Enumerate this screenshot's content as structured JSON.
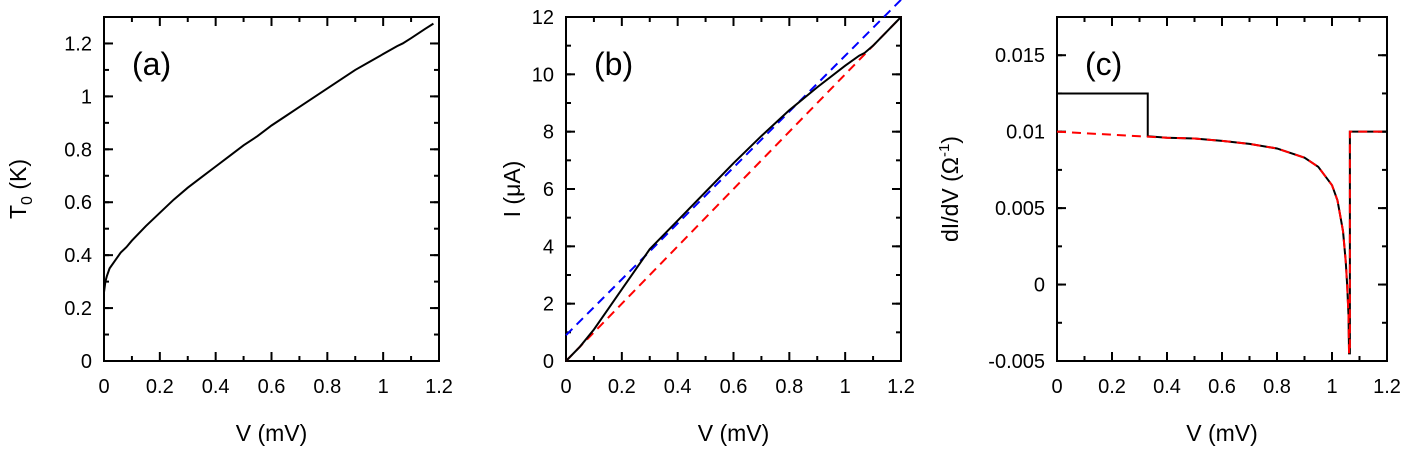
{
  "chart_data": [
    {
      "type": "line",
      "panel_label": "(a)",
      "xlabel": "V (mV)",
      "ylabel_main": "T",
      "ylabel_sub": "0",
      "ylabel_tail": " (K)",
      "xlim": [
        0,
        1.2
      ],
      "ylim": [
        0,
        1.3
      ],
      "xticks": [
        0,
        0.2,
        0.4,
        0.6,
        0.8,
        1,
        1.2
      ],
      "xtick_labels": [
        "0",
        "0.2",
        "0.4",
        "0.6",
        "0.8",
        "1",
        "1.2"
      ],
      "yticks": [
        0,
        0.2,
        0.4,
        0.6,
        0.8,
        1,
        1.2
      ],
      "ytick_labels": [
        "0",
        "0.2",
        "0.4",
        "0.6",
        "0.8",
        "1",
        "1.2"
      ],
      "series": [
        {
          "color": "#000000",
          "dash": "solid",
          "x": [
            0,
            0.005,
            0.01,
            0.02,
            0.04,
            0.06,
            0.08,
            0.1,
            0.15,
            0.2,
            0.25,
            0.3,
            0.35,
            0.4,
            0.45,
            0.5,
            0.55,
            0.6,
            0.65,
            0.7,
            0.75,
            0.8,
            0.85,
            0.9,
            0.95,
            1.0,
            1.05,
            1.07,
            1.1,
            1.15,
            1.18
          ],
          "y": [
            0.26,
            0.3,
            0.32,
            0.35,
            0.38,
            0.41,
            0.43,
            0.455,
            0.51,
            0.56,
            0.61,
            0.655,
            0.695,
            0.735,
            0.775,
            0.815,
            0.85,
            0.89,
            0.925,
            0.96,
            0.995,
            1.03,
            1.065,
            1.1,
            1.13,
            1.16,
            1.19,
            1.2,
            1.22,
            1.255,
            1.275
          ]
        }
      ]
    },
    {
      "type": "line",
      "panel_label": "(b)",
      "xlabel": "V (mV)",
      "ylabel_main": "I (μA)",
      "xlim": [
        0,
        1.2
      ],
      "ylim": [
        0,
        12
      ],
      "xticks": [
        0,
        0.2,
        0.4,
        0.6,
        0.8,
        1,
        1.2
      ],
      "xtick_labels": [
        "0",
        "0.2",
        "0.4",
        "0.6",
        "0.8",
        "1",
        "1.2"
      ],
      "yticks": [
        0,
        2,
        4,
        6,
        8,
        10,
        12
      ],
      "ytick_labels": [
        "0",
        "2",
        "4",
        "6",
        "8",
        "10",
        "12"
      ],
      "series": [
        {
          "color": "#0000ff",
          "dash": "dashed",
          "x": [
            0,
            1.2
          ],
          "y": [
            0.9,
            12.6
          ]
        },
        {
          "color": "#ff0000",
          "dash": "dashed",
          "x": [
            0,
            1.2
          ],
          "y": [
            0,
            12
          ]
        },
        {
          "color": "#000000",
          "dash": "solid",
          "x": [
            0,
            0.05,
            0.1,
            0.15,
            0.2,
            0.25,
            0.3,
            0.33,
            0.4,
            0.5,
            0.6,
            0.7,
            0.8,
            0.9,
            1.0,
            1.05,
            1.07,
            1.1,
            1.2
          ],
          "y": [
            0,
            0.5,
            1.1,
            1.8,
            2.5,
            3.2,
            3.9,
            4.2,
            4.9,
            5.9,
            6.9,
            7.85,
            8.75,
            9.55,
            10.3,
            10.65,
            10.75,
            11.0,
            12.0
          ]
        }
      ]
    },
    {
      "type": "line",
      "panel_label": "(c)",
      "xlabel": "V (mV)",
      "ylabel_main": "dI/dV (Ω",
      "ylabel_sup": "-1",
      "ylabel_tail": ")",
      "xlim": [
        0,
        1.2
      ],
      "ylim": [
        -0.005,
        0.0175
      ],
      "xticks": [
        0,
        0.2,
        0.4,
        0.6,
        0.8,
        1,
        1.2
      ],
      "xtick_labels": [
        "0",
        "0.2",
        "0.4",
        "0.6",
        "0.8",
        "1",
        "1.2"
      ],
      "yticks": [
        -0.005,
        0,
        0.005,
        0.01,
        0.015
      ],
      "ytick_labels": [
        "-0.005",
        "0",
        "0.005",
        "0.01",
        "0.015"
      ],
      "series": [
        {
          "color": "#000000",
          "dash": "solid",
          "x": [
            0,
            0.33,
            0.33,
            0.4,
            0.5,
            0.6,
            0.7,
            0.8,
            0.9,
            0.95,
            1.0,
            1.02,
            1.04,
            1.05,
            1.055,
            1.06,
            1.062,
            1.065,
            1.065,
            1.2
          ],
          "y": [
            0.0125,
            0.0125,
            0.0097,
            0.0096,
            0.00955,
            0.0094,
            0.0092,
            0.0089,
            0.0083,
            0.0077,
            0.0065,
            0.0055,
            0.0035,
            0.0015,
            0.0,
            -0.002,
            -0.0045,
            -0.0045,
            0.01,
            0.01
          ]
        },
        {
          "color": "#ff0000",
          "dash": "dashed",
          "x": [
            0,
            0.1,
            0.2,
            0.3,
            0.4,
            0.5,
            0.6,
            0.7,
            0.8,
            0.9,
            0.95,
            1.0,
            1.02,
            1.04,
            1.05,
            1.055,
            1.06,
            1.062,
            1.065,
            1.065,
            1.2
          ],
          "y": [
            0.01,
            0.0099,
            0.0098,
            0.0097,
            0.0096,
            0.00955,
            0.0094,
            0.0092,
            0.0089,
            0.0083,
            0.0077,
            0.0065,
            0.0055,
            0.0035,
            0.0015,
            0.0,
            -0.002,
            -0.0045,
            -0.0045,
            0.01,
            0.01
          ]
        }
      ]
    }
  ]
}
